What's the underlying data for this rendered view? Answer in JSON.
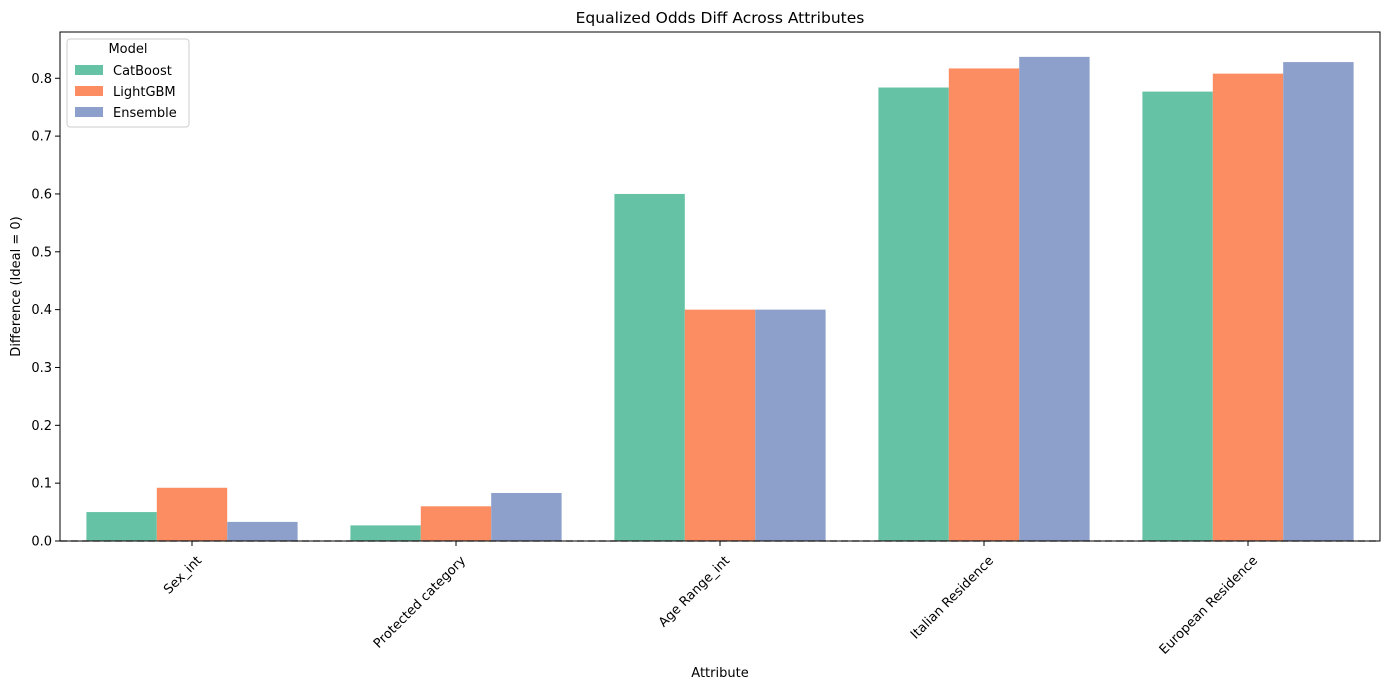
{
  "chart_data": {
    "type": "bar",
    "title": "Equalized Odds Diff Across Attributes",
    "xlabel": "Attribute",
    "ylabel": "Difference (Ideal = 0)",
    "ylim": [
      0,
      0.88
    ],
    "yticks": [
      0.0,
      0.1,
      0.2,
      0.3,
      0.4,
      0.5,
      0.6,
      0.7,
      0.8
    ],
    "ytick_labels": [
      "0.0",
      "0.1",
      "0.2",
      "0.3",
      "0.4",
      "0.5",
      "0.6",
      "0.7",
      "0.8"
    ],
    "categories": [
      "Sex_int",
      "Protected category",
      "Age Range_int",
      "Italian Residence",
      "European Residence"
    ],
    "series": [
      {
        "name": "CatBoost",
        "color": "#66c2a5",
        "values": [
          0.05,
          0.027,
          0.6,
          0.784,
          0.777
        ]
      },
      {
        "name": "LightGBM",
        "color": "#fc8d62",
        "values": [
          0.092,
          0.06,
          0.4,
          0.817,
          0.808
        ]
      },
      {
        "name": "Ensemble",
        "color": "#8da0cb",
        "values": [
          0.033,
          0.083,
          0.4,
          0.837,
          0.828
        ]
      }
    ],
    "reference_line": {
      "y": 0.0,
      "style": "dashed",
      "color": "#808080"
    },
    "legend": {
      "title": "Model",
      "placement": "top-left"
    },
    "grid": false,
    "xtick_rotation_deg": 45
  }
}
